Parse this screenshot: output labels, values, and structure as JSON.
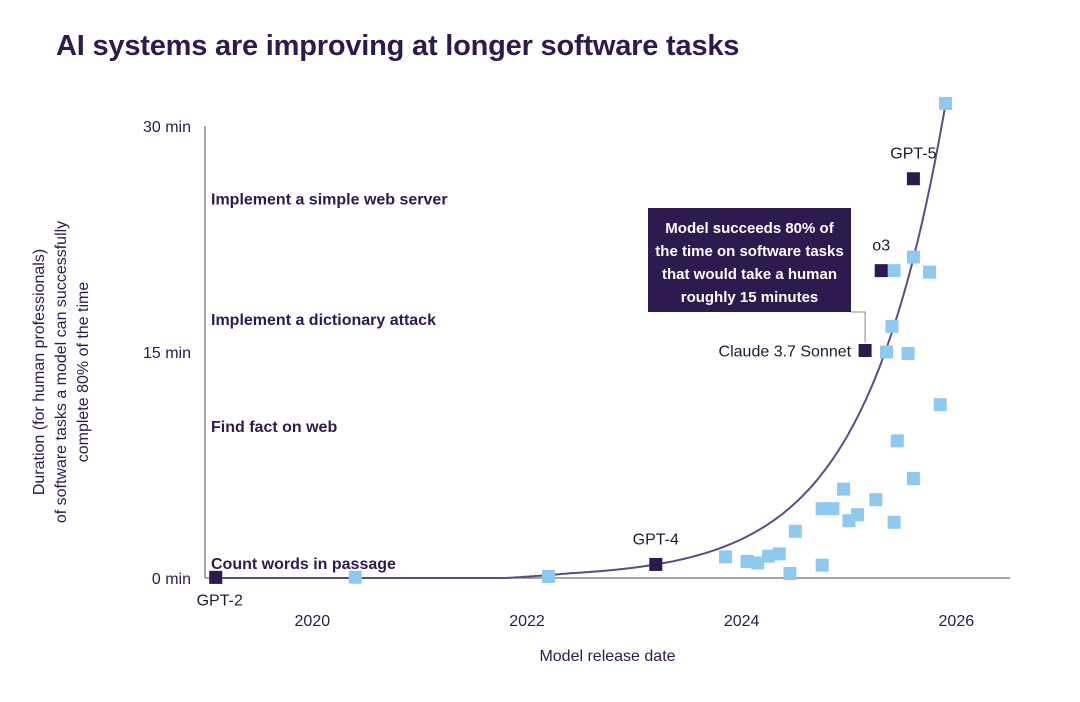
{
  "title": "AI systems are improving at longer software tasks",
  "colors": {
    "highlight": "#2d1a4e",
    "other": "#8ec9f0",
    "curve": "#5f4b85",
    "text": "#2d1a4e",
    "axis": "#6f6f6f"
  },
  "chart_data": {
    "type": "scatter",
    "title": "AI systems are improving at longer software tasks",
    "xlabel": "Model release date",
    "ylabel_lines": [
      "Duration (for human professionals)",
      "of software tasks a model can successfully",
      "complete 80% of the time"
    ],
    "xlim": [
      2019.0,
      2026.5
    ],
    "ylim": [
      0,
      30
    ],
    "x_ticks": [
      {
        "value": 2020,
        "label": "2020"
      },
      {
        "value": 2022,
        "label": "2022"
      },
      {
        "value": 2024,
        "label": "2024"
      },
      {
        "value": 2026,
        "label": "2026"
      }
    ],
    "y_ticks": [
      {
        "value": 0,
        "label": "0 min"
      },
      {
        "value": 15,
        "label": "15 min"
      },
      {
        "value": 30,
        "label": "30 min"
      }
    ],
    "task_labels": [
      {
        "text": "Implement a simple web server",
        "y": 25.2
      },
      {
        "text": "Implement a dictionary attack",
        "y": 17.2
      },
      {
        "text": "Find fact on web",
        "y": 10.1
      },
      {
        "text": "Count words in passage",
        "y": 1.0
      }
    ],
    "highlighted_models": [
      {
        "name": "GPT-2",
        "x": 2019.1,
        "y": 0.04,
        "label_pos": "below"
      },
      {
        "name": "GPT-4",
        "x": 2023.2,
        "y": 0.9,
        "label_pos": "above"
      },
      {
        "name": "Claude 3.7 Sonnet",
        "x": 2025.15,
        "y": 15.1,
        "label_pos": "left"
      },
      {
        "name": "o3",
        "x": 2025.3,
        "y": 20.4,
        "label_pos": "above"
      },
      {
        "name": "GPT-5",
        "x": 2025.6,
        "y": 26.5,
        "label_pos": "above"
      }
    ],
    "other_models": [
      {
        "x": 2019.1,
        "y": 0.05
      },
      {
        "x": 2020.4,
        "y": 0.05
      },
      {
        "x": 2022.2,
        "y": 0.1
      },
      {
        "x": 2023.85,
        "y": 1.4
      },
      {
        "x": 2024.05,
        "y": 1.1
      },
      {
        "x": 2024.15,
        "y": 1.0
      },
      {
        "x": 2024.25,
        "y": 1.45
      },
      {
        "x": 2024.35,
        "y": 1.6
      },
      {
        "x": 2024.45,
        "y": 0.3
      },
      {
        "x": 2024.5,
        "y": 3.1
      },
      {
        "x": 2024.75,
        "y": 4.6
      },
      {
        "x": 2024.75,
        "y": 0.85
      },
      {
        "x": 2024.85,
        "y": 4.6
      },
      {
        "x": 2024.95,
        "y": 5.9
      },
      {
        "x": 2025.0,
        "y": 3.8
      },
      {
        "x": 2025.08,
        "y": 4.2
      },
      {
        "x": 2025.25,
        "y": 5.2
      },
      {
        "x": 2025.35,
        "y": 15.0
      },
      {
        "x": 2025.4,
        "y": 16.7
      },
      {
        "x": 2025.42,
        "y": 20.4
      },
      {
        "x": 2025.42,
        "y": 3.7
      },
      {
        "x": 2025.45,
        "y": 9.1
      },
      {
        "x": 2025.55,
        "y": 14.9
      },
      {
        "x": 2025.6,
        "y": 21.3
      },
      {
        "x": 2025.6,
        "y": 6.6
      },
      {
        "x": 2025.75,
        "y": 20.3
      },
      {
        "x": 2025.85,
        "y": 11.5
      },
      {
        "x": 2025.9,
        "y": 31.5
      }
    ],
    "trend": {
      "type": "exponential",
      "x0": 2023.2,
      "y0": 0.9,
      "x1": 2025.9,
      "y1": 31.5,
      "floor_x": 2021.8
    },
    "annotation": {
      "lines": [
        "Model succeeds 80% of",
        "the time on software tasks",
        "that would take a human",
        "roughly 15 minutes"
      ],
      "points_to": "Claude 3.7 Sonnet"
    }
  }
}
